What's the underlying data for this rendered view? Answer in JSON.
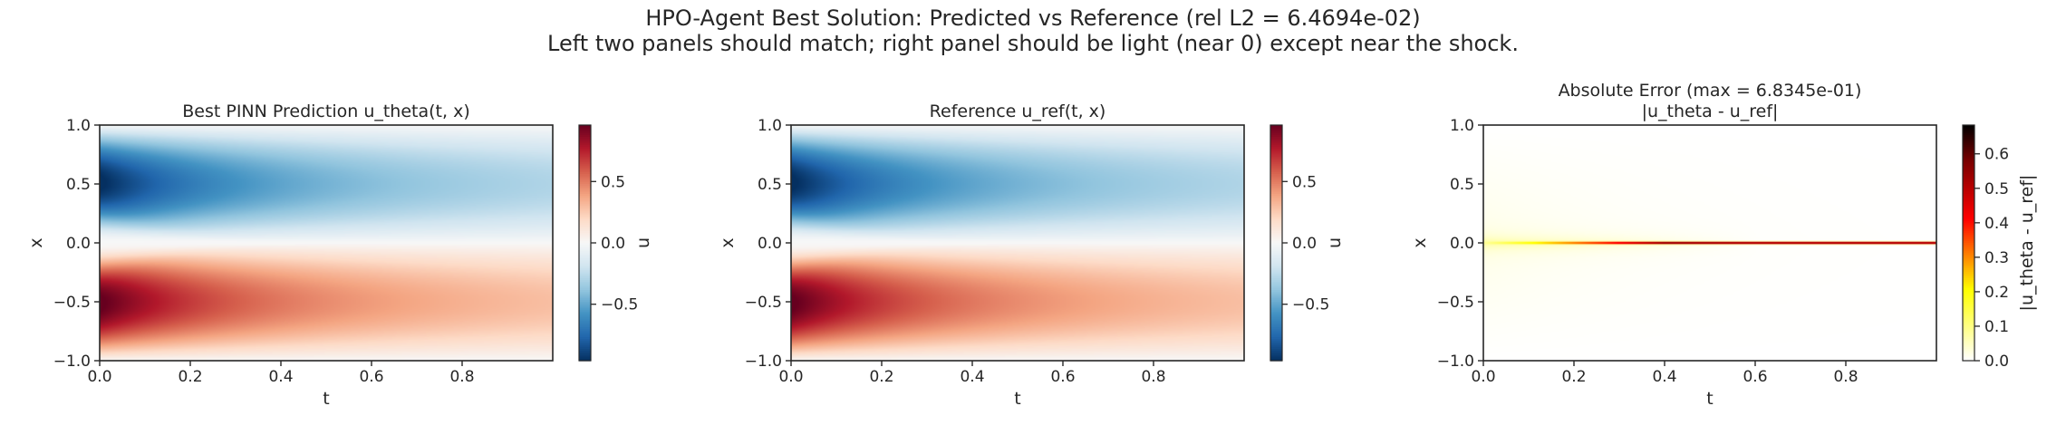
{
  "figure": {
    "title": "HPO-Agent Best Solution: Predicted vs Reference  (rel L2 = 6.4694e-02)",
    "subtitle": "Left two panels should match; right panel should be light (near 0) except near the shock."
  },
  "chart_data": [
    {
      "type": "heatmap",
      "title": "Best PINN Prediction u_theta(t, x)",
      "title_line2": "",
      "xlabel": "t",
      "ylabel": "x",
      "xlim": [
        0,
        1
      ],
      "ylim": [
        -1,
        1
      ],
      "xticks": [
        0.0,
        0.2,
        0.4,
        0.6,
        0.8
      ],
      "xtick_labels": [
        "0.0",
        "0.2",
        "0.4",
        "0.6",
        "0.8"
      ],
      "yticks": [
        1.0,
        0.5,
        0.0,
        -0.5,
        -1.0
      ],
      "ytick_labels": [
        "1.0",
        "0.5",
        "0.0",
        "−0.5",
        "−1.0"
      ],
      "field": "burgers_solution",
      "colormap": "RdBu_r",
      "colorbar": {
        "label": "u",
        "range": [
          -0.96,
          0.96
        ],
        "ticks": [
          0.5,
          0.0,
          -0.5
        ],
        "tick_labels": [
          "0.5",
          "0.0",
          "−0.5"
        ]
      }
    },
    {
      "type": "heatmap",
      "title": "Reference u_ref(t, x)",
      "title_line2": "",
      "xlabel": "t",
      "ylabel": "x",
      "xlim": [
        0,
        1
      ],
      "ylim": [
        -1,
        1
      ],
      "xticks": [
        0.0,
        0.2,
        0.4,
        0.6,
        0.8
      ],
      "xtick_labels": [
        "0.0",
        "0.2",
        "0.4",
        "0.6",
        "0.8"
      ],
      "yticks": [
        1.0,
        0.5,
        0.0,
        -0.5,
        -1.0
      ],
      "ytick_labels": [
        "1.0",
        "0.5",
        "0.0",
        "−0.5",
        "−1.0"
      ],
      "field": "burgers_solution",
      "colormap": "RdBu_r",
      "colorbar": {
        "label": "u",
        "range": [
          -0.96,
          0.96
        ],
        "ticks": [
          0.5,
          0.0,
          -0.5
        ],
        "tick_labels": [
          "0.5",
          "0.0",
          "−0.5"
        ]
      }
    },
    {
      "type": "heatmap",
      "title": "Absolute Error  (max = 6.8345e-01)",
      "title_line2": "|u_theta - u_ref|",
      "xlabel": "t",
      "ylabel": "x",
      "xlim": [
        0,
        1
      ],
      "ylim": [
        -1,
        1
      ],
      "xticks": [
        0.0,
        0.2,
        0.4,
        0.6,
        0.8
      ],
      "xtick_labels": [
        "0.0",
        "0.2",
        "0.4",
        "0.6",
        "0.8"
      ],
      "yticks": [
        1.0,
        0.5,
        0.0,
        -0.5,
        -1.0
      ],
      "ytick_labels": [
        "1.0",
        "0.5",
        "0.0",
        "−0.5",
        "−1.0"
      ],
      "field": "absolute_error",
      "colormap": "hot_r",
      "colorbar": {
        "label": "|u_theta - u_ref|",
        "range": [
          0.0,
          0.68345
        ],
        "ticks": [
          0.6,
          0.5,
          0.4,
          0.3,
          0.2,
          0.1,
          0.0
        ],
        "tick_labels": [
          "0.6",
          "0.5",
          "0.4",
          "0.3",
          "0.2",
          "0.1",
          "0.0"
        ]
      }
    }
  ]
}
